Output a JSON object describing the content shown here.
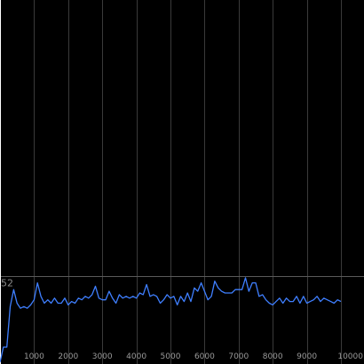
{
  "chart_data": {
    "type": "line",
    "title": "",
    "xlabel": "",
    "ylabel": "",
    "xlim": [
      0,
      10000
    ],
    "ylim": [
      0,
      60
    ],
    "x_ticks": [
      1000,
      2000,
      3000,
      4000,
      5000,
      6000,
      7000,
      8000,
      9000,
      10000
    ],
    "x_tick_labels": [
      "1000",
      "2000",
      "3000",
      "4000",
      "5000",
      "6000",
      "7000",
      "8000",
      "9000",
      "10000"
    ],
    "reference_line": {
      "value": 52,
      "label": "52"
    },
    "grid": "vertical",
    "legend": "none",
    "colors": {
      "background": "#000000",
      "grid": "#3a3a3a",
      "axis": "#ffffff",
      "line": "#3f7fff",
      "reference": "#5a5a5a",
      "text": "#9a9a9a"
    },
    "series": [
      {
        "color": "#3f7fff",
        "x": [
          0,
          100,
          200,
          300,
          400,
          500,
          600,
          700,
          800,
          900,
          1000,
          1100,
          1200,
          1300,
          1400,
          1500,
          1600,
          1700,
          1800,
          1900,
          2000,
          2100,
          2200,
          2300,
          2400,
          2500,
          2600,
          2700,
          2800,
          2900,
          3000,
          3100,
          3200,
          3300,
          3400,
          3500,
          3600,
          3700,
          3800,
          3900,
          4000,
          4100,
          4200,
          4300,
          4400,
          4500,
          4600,
          4700,
          4800,
          4900,
          5000,
          5100,
          5200,
          5300,
          5400,
          5500,
          5600,
          5700,
          5800,
          5900,
          6000,
          6100,
          6200,
          6300,
          6400,
          6500,
          6600,
          6700,
          6800,
          6900,
          7000,
          7100,
          7200,
          7300,
          7400,
          7500,
          7600,
          7700,
          7800,
          7900,
          8000,
          8100,
          8200,
          8300,
          8400,
          8500,
          8600,
          8700,
          8800,
          8900,
          9000,
          9100,
          9200,
          9300,
          9400,
          9500,
          9600,
          9700,
          9800,
          9900,
          10000
        ],
        "y": [
          1,
          10,
          10,
          34,
          44,
          36,
          33,
          34,
          33,
          35,
          38,
          48,
          40,
          36,
          38,
          36,
          39,
          36,
          36,
          39,
          35,
          37,
          36,
          39,
          38,
          40,
          39,
          41,
          46,
          39,
          38,
          38,
          43,
          39,
          36,
          41,
          39,
          40,
          39,
          40,
          39,
          42,
          41,
          47,
          40,
          41,
          40,
          36,
          38,
          41,
          39,
          40,
          35,
          40,
          37,
          42,
          37,
          45,
          43,
          48,
          43,
          38,
          40,
          49,
          45,
          43,
          42,
          42,
          42,
          44,
          44,
          44,
          51,
          43,
          48,
          48,
          40,
          41,
          38,
          36,
          35,
          37,
          39,
          36,
          39,
          37,
          37,
          40,
          36,
          40,
          36,
          37,
          38,
          40,
          37,
          39,
          38,
          37,
          36,
          38,
          37
        ]
      }
    ]
  }
}
